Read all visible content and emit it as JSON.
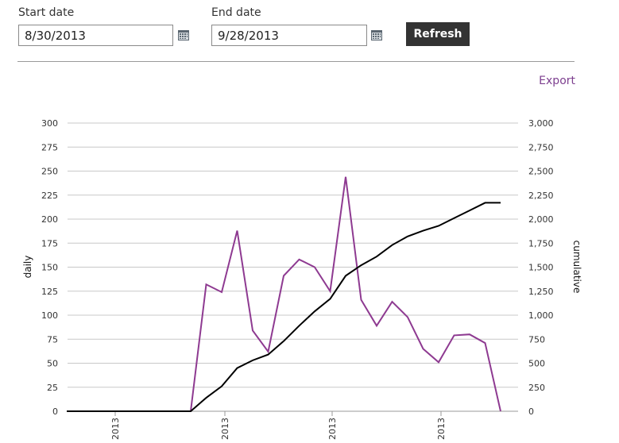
{
  "controls": {
    "start_label": "Start date",
    "start_value": "8/30/2013",
    "end_label": "End date",
    "end_value": "9/28/2013",
    "refresh_label": "Refresh",
    "export_label": "Export",
    "calendar_icon": "calendar-icon"
  },
  "colors": {
    "daily": "#8e3a91",
    "cumulative": "#000000",
    "grid": "#c8c8c8",
    "button_bg": "#333333",
    "export": "#7d3f8f"
  },
  "chart_data": {
    "type": "line",
    "ylabel": "daily",
    "y2label": "cumulative",
    "ylim": [
      0,
      300
    ],
    "y2lim": [
      0,
      3000
    ],
    "y_ticks": [
      "0",
      "25",
      "50",
      "75",
      "100",
      "125",
      "150",
      "175",
      "200",
      "225",
      "250",
      "275",
      "300"
    ],
    "y2_ticks": [
      "0",
      "250",
      "500",
      "750",
      "1,000",
      "1,250",
      "1,500",
      "1,750",
      "2,000",
      "2,250",
      "2,500",
      "2,750",
      "3,000"
    ],
    "x_ticks": [
      "2013",
      "2013",
      "2013",
      "2013"
    ],
    "grid": true,
    "series": [
      {
        "name": "daily",
        "axis": "left",
        "values": [
          0,
          0,
          0,
          0,
          0,
          0,
          0,
          0,
          0,
          132,
          124,
          188,
          84,
          62,
          141,
          158,
          150,
          125,
          244,
          116,
          89,
          114,
          98,
          65,
          51,
          79,
          80,
          71,
          0
        ]
      },
      {
        "name": "cumulative",
        "axis": "right",
        "values": [
          0,
          0,
          0,
          0,
          0,
          0,
          0,
          0,
          0,
          140,
          260,
          450,
          530,
          590,
          730,
          890,
          1040,
          1170,
          1410,
          1520,
          1610,
          1730,
          1820,
          1880,
          1930,
          2010,
          2090,
          2170,
          2170
        ]
      }
    ]
  }
}
